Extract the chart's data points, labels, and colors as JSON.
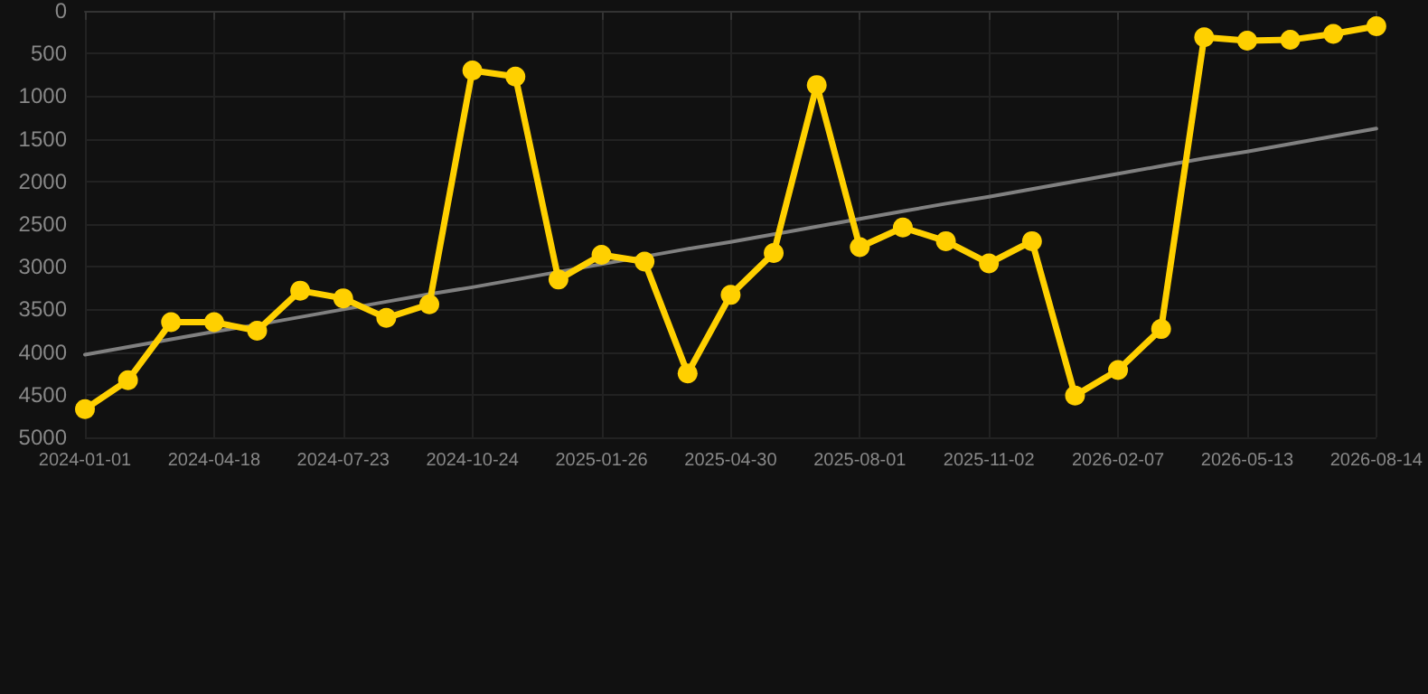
{
  "chart_data": {
    "type": "line",
    "categories": [
      "2024-01-01",
      null,
      null,
      "2024-04-18",
      null,
      null,
      "2024-07-23",
      null,
      null,
      "2024-10-24",
      null,
      null,
      "2025-01-26",
      null,
      null,
      "2025-04-30",
      null,
      null,
      "2025-08-01",
      null,
      null,
      "2025-11-02",
      null,
      null,
      "2026-02-07",
      null,
      null,
      "2026-05-13",
      null,
      null,
      "2026-08-14"
    ],
    "series": [
      {
        "color": "#ffd000",
        "marker": "circle",
        "values": [
          4670,
          4330,
          3650,
          3650,
          3750,
          3280,
          3370,
          3600,
          3440,
          700,
          770,
          3150,
          2860,
          2940,
          4250,
          3330,
          2840,
          870,
          2770,
          2540,
          2700,
          2960,
          2700,
          4510,
          4210,
          3730,
          310,
          350,
          340,
          270,
          180
        ]
      },
      {
        "color": "#808080",
        "marker": "none",
        "values": [
          4030,
          3940,
          3850,
          3760,
          3680,
          3590,
          3500,
          3410,
          3320,
          3240,
          3150,
          3060,
          2970,
          2880,
          2790,
          2710,
          2620,
          2530,
          2440,
          2350,
          2260,
          2180,
          2090,
          2000,
          1910,
          1820,
          1730,
          1650,
          1560,
          1470,
          1380
        ]
      }
    ],
    "ylim": [
      5000,
      0
    ],
    "yticks": [
      0,
      500,
      1000,
      1500,
      2000,
      2500,
      3000,
      3500,
      4000,
      4500,
      5000
    ],
    "grid": true,
    "line_style": "solid"
  }
}
